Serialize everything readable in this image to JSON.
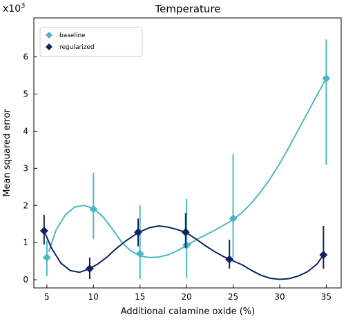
{
  "chart_data": {
    "type": "line",
    "title": "Temperature",
    "xlabel": "Additional calamine oxide (%)",
    "ylabel": "Mean squared error",
    "y_multiplier": "x10",
    "y_multiplier_exp": "3",
    "xlim": [
      3.6,
      36.6
    ],
    "ylim": [
      -0.22,
      7.05
    ],
    "x_ticks": [
      5,
      10,
      15,
      20,
      25,
      30,
      35
    ],
    "y_ticks": [
      0,
      1,
      2,
      3,
      4,
      5,
      6
    ],
    "grid": false,
    "legend_position": "top-left",
    "series": [
      {
        "name": "baseline",
        "color": "#4ab8c4",
        "marker": "diamond",
        "x": [
          5,
          10,
          15,
          20,
          25,
          35
        ],
        "y": [
          0.6,
          1.9,
          0.7,
          0.93,
          1.65,
          5.42
        ],
        "yerr_low": [
          0.1,
          1.1,
          0.02,
          0.05,
          0.6,
          3.1
        ],
        "yerr_high": [
          1.05,
          2.88,
          2.0,
          2.18,
          3.38,
          6.47
        ],
        "curve": [
          [
            5.2,
            0.75
          ],
          [
            6,
            1.35
          ],
          [
            7,
            1.75
          ],
          [
            8,
            1.96
          ],
          [
            9,
            2.0
          ],
          [
            10,
            1.92
          ],
          [
            11,
            1.7
          ],
          [
            12,
            1.38
          ],
          [
            13,
            1.02
          ],
          [
            14,
            0.78
          ],
          [
            15,
            0.64
          ],
          [
            16,
            0.6
          ],
          [
            17,
            0.61
          ],
          [
            18,
            0.67
          ],
          [
            19,
            0.78
          ],
          [
            20,
            0.92
          ],
          [
            21,
            1.07
          ],
          [
            22,
            1.2
          ],
          [
            23,
            1.33
          ],
          [
            24,
            1.47
          ],
          [
            25,
            1.62
          ],
          [
            26,
            1.82
          ],
          [
            27,
            2.07
          ],
          [
            28,
            2.38
          ],
          [
            29,
            2.73
          ],
          [
            30,
            3.13
          ],
          [
            31,
            3.57
          ],
          [
            32,
            4.04
          ],
          [
            33,
            4.5
          ],
          [
            34,
            4.97
          ],
          [
            35,
            5.42
          ]
        ]
      },
      {
        "name": "regularized",
        "color": "#0d2260",
        "marker": "diamond",
        "x": [
          4.7,
          9.6,
          14.8,
          19.9,
          24.6,
          34.7
        ],
        "y": [
          1.32,
          0.3,
          1.28,
          1.28,
          0.55,
          0.67
        ],
        "yerr_low": [
          0.95,
          0.02,
          0.9,
          0.85,
          0.3,
          0.3
        ],
        "yerr_high": [
          1.75,
          0.6,
          1.65,
          1.8,
          1.08,
          1.45
        ],
        "curve": [
          [
            4.7,
            1.32
          ],
          [
            5.5,
            0.85
          ],
          [
            6.5,
            0.45
          ],
          [
            7.5,
            0.25
          ],
          [
            8.5,
            0.2
          ],
          [
            9.6,
            0.3
          ],
          [
            10.5,
            0.43
          ],
          [
            11.5,
            0.62
          ],
          [
            12.5,
            0.85
          ],
          [
            13.5,
            1.05
          ],
          [
            14.8,
            1.27
          ],
          [
            16,
            1.4
          ],
          [
            17,
            1.45
          ],
          [
            18,
            1.42
          ],
          [
            19,
            1.35
          ],
          [
            19.9,
            1.28
          ],
          [
            21,
            1.1
          ],
          [
            22,
            0.92
          ],
          [
            23,
            0.76
          ],
          [
            24,
            0.62
          ],
          [
            24.6,
            0.55
          ],
          [
            26,
            0.4
          ],
          [
            27,
            0.25
          ],
          [
            28,
            0.12
          ],
          [
            29,
            0.04
          ],
          [
            30,
            0.01
          ],
          [
            31,
            0.03
          ],
          [
            32,
            0.1
          ],
          [
            33,
            0.22
          ],
          [
            34,
            0.42
          ],
          [
            34.7,
            0.67
          ]
        ]
      }
    ]
  }
}
